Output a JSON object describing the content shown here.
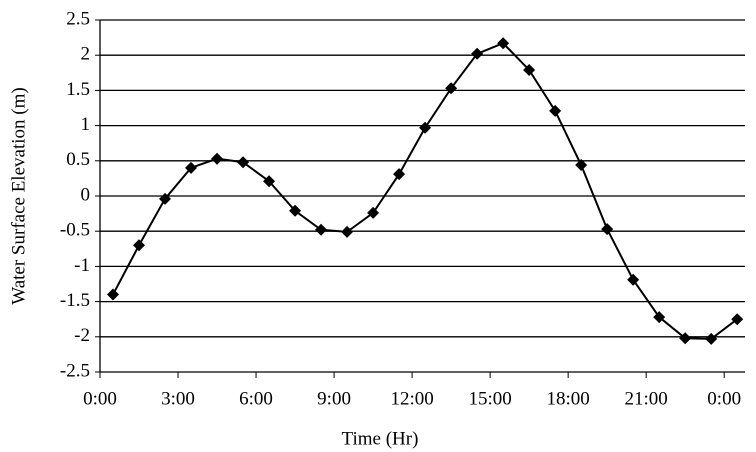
{
  "chart_data": {
    "type": "line",
    "x_label": "Time (Hr)",
    "y_label": "Water Surface Elevation (m)",
    "x": [
      0.5,
      1.5,
      2.5,
      3.5,
      4.5,
      5.5,
      6.5,
      7.5,
      8.5,
      9.5,
      10.5,
      11.5,
      12.5,
      13.5,
      14.5,
      15.5,
      16.5,
      17.5,
      18.5,
      19.5,
      20.5,
      21.5,
      22.5,
      23.5,
      24.5
    ],
    "series": [
      {
        "color": "#000000",
        "values": [
          -1.4,
          -0.7,
          -0.04,
          0.4,
          0.53,
          0.48,
          0.21,
          -0.21,
          -0.48,
          -0.51,
          -0.24,
          0.31,
          0.97,
          1.53,
          2.02,
          2.17,
          1.79,
          1.21,
          0.44,
          -0.47,
          -1.19,
          -1.72,
          -2.02,
          -2.03,
          -1.75
        ]
      }
    ],
    "xlim": [
      0,
      24.8
    ],
    "xticks": [
      {
        "value": 0,
        "label": "0:00"
      },
      {
        "value": 3,
        "label": "3:00"
      },
      {
        "value": 6,
        "label": "6:00"
      },
      {
        "value": 9,
        "label": "9:00"
      },
      {
        "value": 12,
        "label": "12:00"
      },
      {
        "value": 15,
        "label": "15:00"
      },
      {
        "value": 18,
        "label": "18:00"
      },
      {
        "value": 21,
        "label": "21:00"
      },
      {
        "value": 24,
        "label": "0:00"
      }
    ],
    "ylim": [
      -2.5,
      2.5
    ],
    "yticks": [
      -2.5,
      -2,
      -1.5,
      -1,
      -0.5,
      0,
      0.5,
      1,
      1.5,
      2,
      2.5
    ],
    "grid": true
  }
}
